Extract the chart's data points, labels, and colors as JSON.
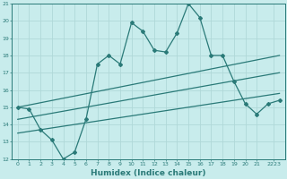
{
  "title": "",
  "xlabel": "Humidex (Indice chaleur)",
  "ylabel": "",
  "xlim": [
    -0.5,
    23.5
  ],
  "ylim": [
    12,
    21
  ],
  "xtick_labels": [
    "0",
    "1",
    "2",
    "3",
    "4",
    "5",
    "6",
    "7",
    "8",
    "9",
    "10",
    "11",
    "12",
    "13",
    "14",
    "15",
    "16",
    "17",
    "18",
    "19",
    "20",
    "21",
    "2223"
  ],
  "xticks": [
    0,
    1,
    2,
    3,
    4,
    5,
    6,
    7,
    8,
    9,
    10,
    11,
    12,
    13,
    14,
    15,
    16,
    17,
    18,
    19,
    20,
    21,
    22.5
  ],
  "yticks": [
    12,
    13,
    14,
    15,
    16,
    17,
    18,
    19,
    20,
    21
  ],
  "bg_color": "#c8ecec",
  "grid_color": "#b0d8d8",
  "line_color": "#2a7a78",
  "line1_x": [
    0,
    1,
    2,
    3,
    4,
    5,
    6,
    7,
    8,
    9,
    10,
    11,
    12,
    13,
    14,
    15,
    16,
    17,
    18,
    19,
    20,
    21,
    22,
    23
  ],
  "line1_y": [
    15.0,
    14.9,
    13.7,
    13.1,
    12.0,
    12.4,
    14.3,
    17.5,
    18.0,
    17.5,
    19.9,
    19.4,
    18.3,
    18.2,
    19.3,
    21.0,
    20.2,
    18.0,
    18.0,
    16.5,
    15.2,
    14.6,
    15.2,
    15.4
  ],
  "line2_x": [
    0,
    23
  ],
  "line2_y": [
    15.0,
    18.0
  ],
  "line3_x": [
    0,
    23
  ],
  "line3_y": [
    14.3,
    17.0
  ],
  "line4_x": [
    0,
    23
  ],
  "line4_y": [
    13.5,
    15.8
  ]
}
